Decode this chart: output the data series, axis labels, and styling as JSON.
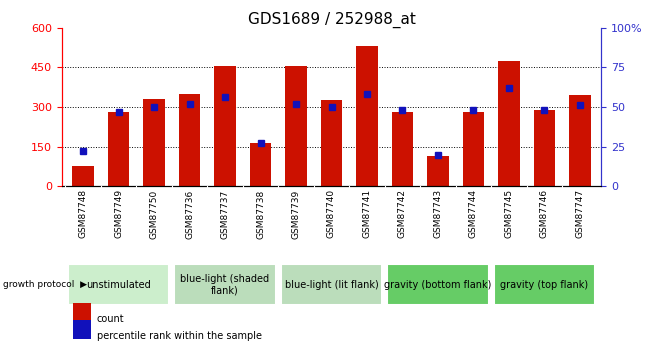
{
  "title": "GDS1689 / 252988_at",
  "samples": [
    "GSM87748",
    "GSM87749",
    "GSM87750",
    "GSM87736",
    "GSM87737",
    "GSM87738",
    "GSM87739",
    "GSM87740",
    "GSM87741",
    "GSM87742",
    "GSM87743",
    "GSM87744",
    "GSM87745",
    "GSM87746",
    "GSM87747"
  ],
  "counts": [
    75,
    280,
    330,
    350,
    455,
    165,
    455,
    325,
    530,
    280,
    115,
    280,
    475,
    290,
    345
  ],
  "percentiles": [
    22,
    47,
    50,
    52,
    56,
    27,
    52,
    50,
    58,
    48,
    20,
    48,
    62,
    48,
    51
  ],
  "ylim_left": [
    0,
    600
  ],
  "ylim_right": [
    0,
    100
  ],
  "yticks_left": [
    0,
    150,
    300,
    450,
    600
  ],
  "yticks_right": [
    0,
    25,
    50,
    75,
    100
  ],
  "bar_color": "#cc1100",
  "dot_color": "#1111bb",
  "groups": [
    {
      "label": "unstimulated",
      "start": 0,
      "end": 2,
      "color": "#cceecc"
    },
    {
      "label": "blue-light (shaded\nflank)",
      "start": 3,
      "end": 5,
      "color": "#bbddbb"
    },
    {
      "label": "blue-light (lit flank)",
      "start": 6,
      "end": 8,
      "color": "#bbddbb"
    },
    {
      "label": "gravity (bottom flank)",
      "start": 9,
      "end": 11,
      "color": "#66cc66"
    },
    {
      "label": "gravity (top flank)",
      "start": 12,
      "end": 14,
      "color": "#66cc66"
    }
  ],
  "legend_count_label": "count",
  "legend_pct_label": "percentile rank within the sample",
  "growth_protocol_label": "growth protocol",
  "background_color": "#ffffff",
  "tick_bg_color": "#cccccc",
  "bar_width": 0.6,
  "title_fontsize": 11,
  "axis_tick_fontsize": 8,
  "label_fontsize": 7,
  "group_fontsize": 7
}
